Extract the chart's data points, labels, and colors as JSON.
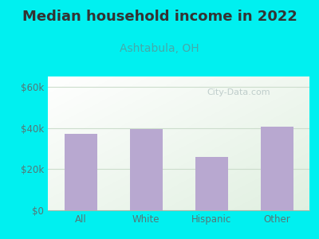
{
  "title": "Median household income in 2022",
  "subtitle": "Ashtabula, OH",
  "categories": [
    "All",
    "White",
    "Hispanic",
    "Other"
  ],
  "values": [
    37000,
    39500,
    26000,
    40500
  ],
  "bar_color": "#b8a8d0",
  "background_outer": "#00f0f0",
  "title_fontsize": 13,
  "subtitle_fontsize": 10,
  "subtitle_color": "#44aaaa",
  "tick_label_color": "#557777",
  "ylabel_ticks": [
    0,
    20000,
    40000,
    60000
  ],
  "ylabel_labels": [
    "$0",
    "$20k",
    "$40k",
    "$60k"
  ],
  "ylim": [
    0,
    65000
  ],
  "watermark": "City-Data.com",
  "title_color": "#333333",
  "gradient_colors": [
    "#c8e8c0",
    "#f0f8f0",
    "#ffffff"
  ],
  "grid_color": "#ccddcc"
}
